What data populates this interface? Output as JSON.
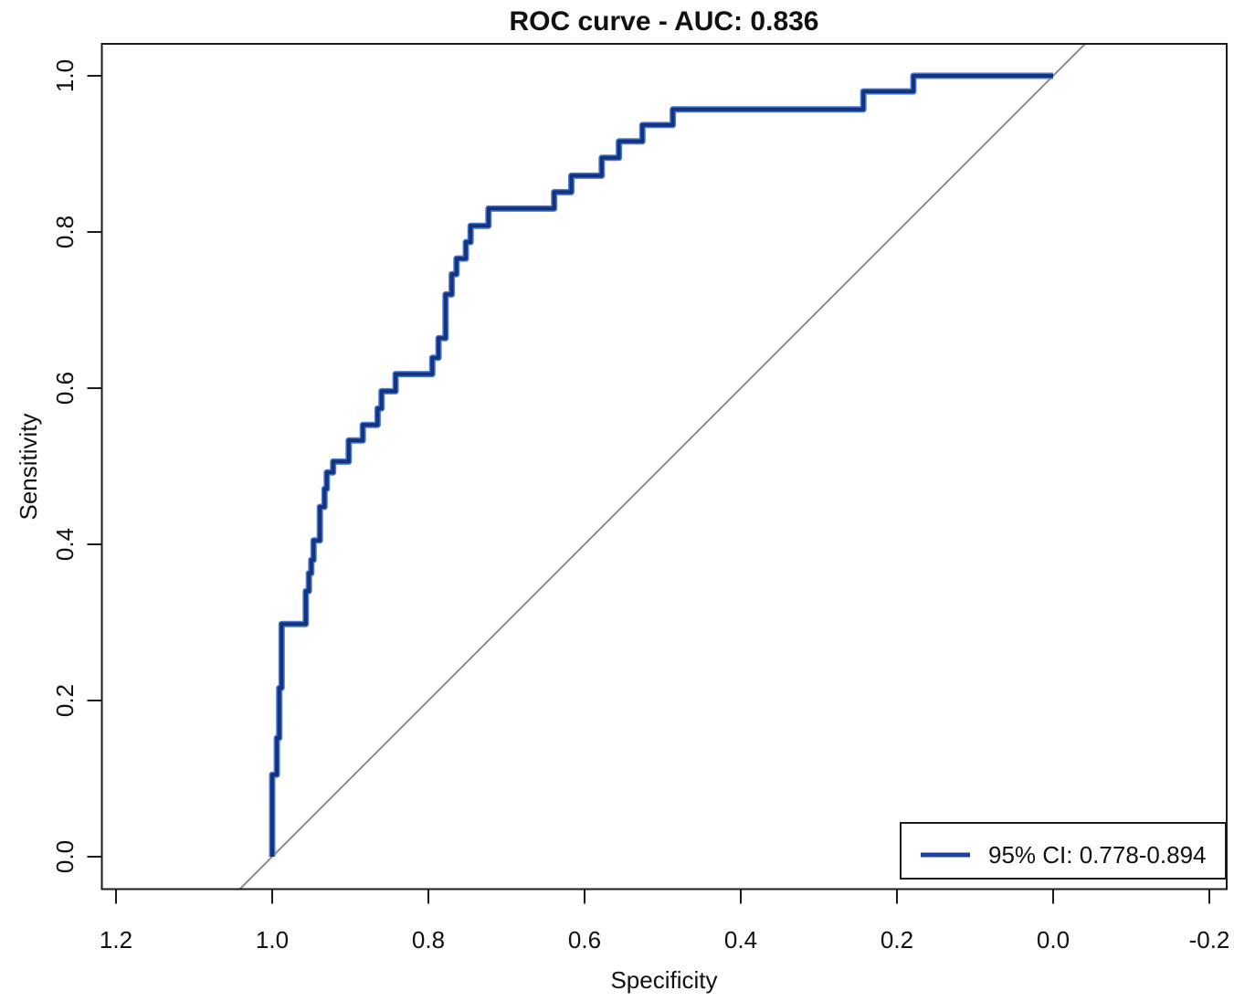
{
  "chart_data": {
    "type": "line",
    "subtype": "roc-step-curve",
    "title": "ROC curve - AUC: 0.836",
    "xlabel": "Specificity",
    "ylabel": "Sensitivity",
    "auc": 0.836,
    "ci_95": [
      0.778,
      0.894
    ],
    "x_axis_reversed": true,
    "xlim": [
      1.2,
      -0.2
    ],
    "ylim": [
      0.0,
      1.0
    ],
    "grid": false,
    "x_tick_labels": [
      "1.2",
      "1.0",
      "0.8",
      "0.6",
      "0.4",
      "0.2",
      "0.0",
      "-0.2"
    ],
    "y_tick_labels": [
      "0.0",
      "0.2",
      "0.4",
      "0.6",
      "0.8",
      "1.0"
    ],
    "reference_line": {
      "name": "chance-diagonal",
      "from": [
        1.0,
        0.0
      ],
      "to": [
        0.0,
        1.0
      ]
    },
    "legend": {
      "position": "bottom-right",
      "entries": [
        {
          "label": "95% CI: 0.778-0.894",
          "color": "#1c419e"
        }
      ]
    },
    "colors": {
      "curve": "#14337f",
      "curve_glow": "#4a79d0",
      "diagonal": "#8c8c8c",
      "axis": "#1a1a1a",
      "background": "#ffffff"
    },
    "series": [
      {
        "name": "ROC curve",
        "draw": "step-corners",
        "color": "#1c419e",
        "points": [
          [
            1.0,
            0.0
          ],
          [
            1.0,
            0.105
          ],
          [
            0.994,
            0.105
          ],
          [
            0.994,
            0.152
          ],
          [
            0.991,
            0.152
          ],
          [
            0.991,
            0.216
          ],
          [
            0.988,
            0.216
          ],
          [
            0.988,
            0.298
          ],
          [
            0.957,
            0.298
          ],
          [
            0.957,
            0.34
          ],
          [
            0.953,
            0.34
          ],
          [
            0.953,
            0.363
          ],
          [
            0.95,
            0.363
          ],
          [
            0.95,
            0.38
          ],
          [
            0.947,
            0.38
          ],
          [
            0.947,
            0.405
          ],
          [
            0.939,
            0.405
          ],
          [
            0.939,
            0.448
          ],
          [
            0.933,
            0.448
          ],
          [
            0.933,
            0.471
          ],
          [
            0.93,
            0.471
          ],
          [
            0.93,
            0.492
          ],
          [
            0.922,
            0.492
          ],
          [
            0.922,
            0.506
          ],
          [
            0.902,
            0.506
          ],
          [
            0.902,
            0.533
          ],
          [
            0.884,
            0.533
          ],
          [
            0.884,
            0.553
          ],
          [
            0.865,
            0.553
          ],
          [
            0.865,
            0.574
          ],
          [
            0.86,
            0.574
          ],
          [
            0.86,
            0.596
          ],
          [
            0.842,
            0.596
          ],
          [
            0.842,
            0.618
          ],
          [
            0.795,
            0.618
          ],
          [
            0.795,
            0.639
          ],
          [
            0.787,
            0.639
          ],
          [
            0.787,
            0.664
          ],
          [
            0.778,
            0.664
          ],
          [
            0.778,
            0.72
          ],
          [
            0.77,
            0.72
          ],
          [
            0.77,
            0.746
          ],
          [
            0.764,
            0.746
          ],
          [
            0.764,
            0.766
          ],
          [
            0.752,
            0.766
          ],
          [
            0.752,
            0.787
          ],
          [
            0.746,
            0.787
          ],
          [
            0.746,
            0.808
          ],
          [
            0.723,
            0.808
          ],
          [
            0.723,
            0.83
          ],
          [
            0.639,
            0.83
          ],
          [
            0.639,
            0.851
          ],
          [
            0.617,
            0.851
          ],
          [
            0.617,
            0.872
          ],
          [
            0.578,
            0.872
          ],
          [
            0.578,
            0.895
          ],
          [
            0.556,
            0.895
          ],
          [
            0.556,
            0.916
          ],
          [
            0.526,
            0.916
          ],
          [
            0.526,
            0.937
          ],
          [
            0.487,
            0.937
          ],
          [
            0.487,
            0.957
          ],
          [
            0.243,
            0.957
          ],
          [
            0.243,
            0.98
          ],
          [
            0.179,
            0.98
          ],
          [
            0.179,
            1.0
          ],
          [
            0.0,
            1.0
          ]
        ]
      }
    ]
  }
}
